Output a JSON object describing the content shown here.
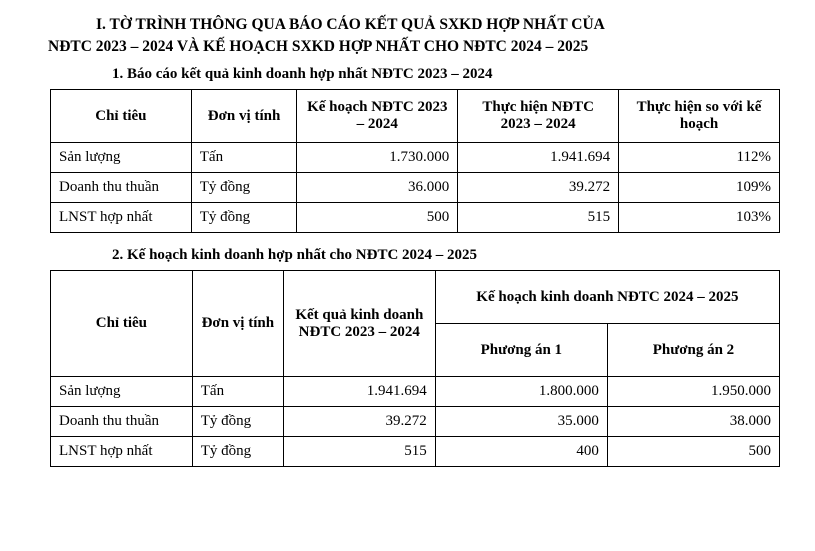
{
  "heading": {
    "line1": "I. TỜ TRÌNH THÔNG QUA BÁO CÁO KẾT QUẢ SXKD HỢP NHẤT CỦA",
    "line2": "NĐTC 2023 – 2024 VÀ KẾ HOẠCH SXKD HỢP NHẤT CHO NĐTC 2024 – 2025"
  },
  "section1": {
    "title": "1. Báo cáo kết quả kinh doanh hợp nhất NĐTC 2023 – 2024",
    "headers": {
      "metric": "Chỉ tiêu",
      "unit": "Đơn vị tính",
      "plan": "Kế hoạch NĐTC 2023 – 2024",
      "actual": "Thực hiện NĐTC 2023 – 2024",
      "ratio": "Thực hiện so với kế hoạch"
    },
    "rows": [
      {
        "metric": "Sản lượng",
        "unit": "Tấn",
        "plan": "1.730.000",
        "actual": "1.941.694",
        "ratio": "112%"
      },
      {
        "metric": "Doanh thu thuần",
        "unit": "Tỷ đồng",
        "plan": "36.000",
        "actual": "39.272",
        "ratio": "109%"
      },
      {
        "metric": "LNST hợp nhất",
        "unit": "Tỷ đồng",
        "plan": "500",
        "actual": "515",
        "ratio": "103%"
      }
    ]
  },
  "section2": {
    "title": "2. Kế hoạch kinh doanh hợp nhất cho NĐTC 2024  –  2025",
    "headers": {
      "metric": "Chỉ tiêu",
      "unit": "Đơn vị tính",
      "result": "Kết quả kinh doanh NĐTC 2023 – 2024",
      "plan_group": "Kế hoạch kinh doanh NĐTC 2024 – 2025",
      "plan1": "Phương án 1",
      "plan2": "Phương án 2"
    },
    "rows": [
      {
        "metric": "Sản lượng",
        "unit": "Tấn",
        "result": "1.941.694",
        "plan1": "1.800.000",
        "plan2": "1.950.000"
      },
      {
        "metric": "Doanh thu thuần",
        "unit": "Tỷ đồng",
        "result": "39.272",
        "plan1": "35.000",
        "plan2": "38.000"
      },
      {
        "metric": "LNST hợp nhất",
        "unit": "Tỷ đồng",
        "result": "515",
        "plan1": "400",
        "plan2": "500"
      }
    ]
  },
  "style": {
    "font_family": "Times New Roman",
    "base_font_size_pt": 12,
    "text_color": "#000000",
    "background_color": "#ffffff",
    "border_color": "#000000"
  }
}
